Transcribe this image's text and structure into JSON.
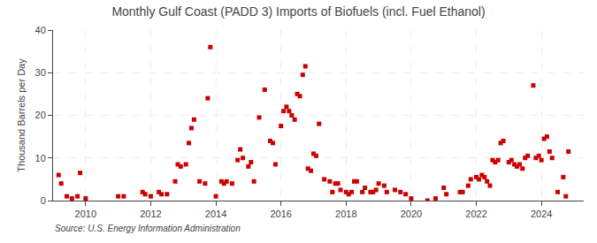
{
  "chart_data": {
    "type": "scatter",
    "title": "Monthly Gulf Coast (PADD 3) Imports of Biofuels (incl. Fuel Ethanol)",
    "ylabel": "Thousand Barrels per Day",
    "annotations": [
      "Source: U.S. Energy Information Administration"
    ],
    "x": [
      2009.17,
      2009.25,
      2009.42,
      2009.58,
      2009.75,
      2009.83,
      2010.0,
      2011.0,
      2011.17,
      2011.75,
      2011.83,
      2012.0,
      2012.25,
      2012.33,
      2012.5,
      2012.75,
      2012.83,
      2012.92,
      2013.08,
      2013.17,
      2013.25,
      2013.33,
      2013.5,
      2013.67,
      2013.75,
      2013.83,
      2014.0,
      2014.17,
      2014.25,
      2014.33,
      2014.5,
      2014.67,
      2014.75,
      2014.83,
      2015.0,
      2015.08,
      2015.17,
      2015.33,
      2015.5,
      2015.67,
      2015.75,
      2015.83,
      2016.0,
      2016.08,
      2016.17,
      2016.25,
      2016.33,
      2016.42,
      2016.5,
      2016.58,
      2016.67,
      2016.75,
      2016.83,
      2016.92,
      2017.0,
      2017.08,
      2017.17,
      2017.33,
      2017.5,
      2017.58,
      2017.67,
      2017.75,
      2017.83,
      2018.0,
      2018.08,
      2018.17,
      2018.25,
      2018.33,
      2018.5,
      2018.58,
      2018.75,
      2018.83,
      2018.92,
      2019.0,
      2019.17,
      2019.25,
      2019.5,
      2019.67,
      2019.83,
      2020.0,
      2020.5,
      2020.75,
      2021.0,
      2021.08,
      2021.5,
      2021.58,
      2021.75,
      2021.83,
      2022.0,
      2022.08,
      2022.17,
      2022.25,
      2022.33,
      2022.42,
      2022.5,
      2022.58,
      2022.67,
      2022.75,
      2022.83,
      2023.0,
      2023.08,
      2023.17,
      2023.25,
      2023.33,
      2023.42,
      2023.5,
      2023.58,
      2023.75,
      2023.83,
      2023.92,
      2024.0,
      2024.08,
      2024.17,
      2024.25,
      2024.33,
      2024.5,
      2024.67,
      2024.75,
      2024.83
    ],
    "values": [
      6.0,
      4.0,
      1.0,
      0.5,
      1.0,
      6.5,
      0.5,
      1.0,
      1.0,
      2.0,
      1.5,
      1.0,
      2.0,
      1.5,
      1.5,
      4.5,
      8.5,
      8.0,
      8.5,
      13.5,
      17.0,
      19.0,
      4.5,
      4.0,
      24.0,
      36.0,
      1.0,
      4.5,
      4.0,
      4.5,
      4.0,
      9.5,
      12.0,
      10.0,
      8.0,
      9.0,
      4.5,
      19.5,
      26.0,
      14.0,
      13.5,
      8.5,
      17.5,
      21.0,
      22.0,
      21.0,
      20.0,
      19.0,
      25.0,
      24.5,
      29.5,
      31.5,
      7.5,
      7.0,
      11.0,
      10.5,
      18.0,
      5.0,
      4.5,
      2.0,
      4.0,
      4.0,
      2.5,
      2.0,
      1.5,
      2.0,
      4.5,
      4.5,
      2.0,
      3.0,
      2.0,
      2.0,
      2.5,
      4.0,
      3.5,
      2.0,
      2.5,
      2.0,
      1.5,
      0.5,
      0.0,
      0.5,
      3.0,
      1.5,
      2.0,
      2.0,
      3.5,
      5.0,
      5.5,
      5.0,
      6.0,
      5.5,
      4.5,
      3.5,
      9.5,
      9.0,
      9.5,
      13.5,
      14.0,
      9.0,
      9.5,
      8.5,
      8.0,
      8.5,
      7.5,
      10.0,
      10.5,
      27.0,
      10.0,
      10.5,
      9.5,
      14.5,
      15.0,
      11.5,
      10.0,
      2.0,
      5.5,
      1.0,
      11.5
    ],
    "color": "#cc0000",
    "marker": "square",
    "xlim": [
      2009.0,
      2025.3
    ],
    "xticks": [
      2010,
      2012,
      2014,
      2016,
      2018,
      2020,
      2022,
      2024
    ],
    "ylim": [
      0,
      40
    ],
    "yticks": [
      0,
      10,
      20,
      30,
      40
    ],
    "grid": true
  }
}
